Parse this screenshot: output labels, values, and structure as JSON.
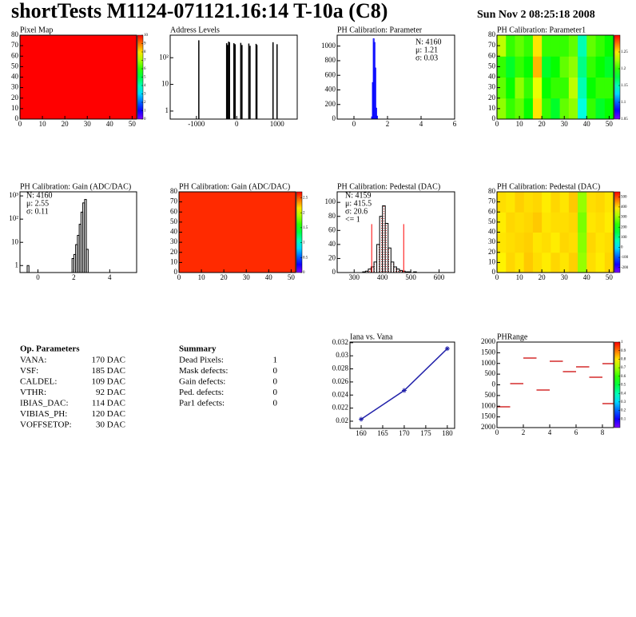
{
  "header": {
    "title": "shortTests M1124-071121.16:14 T-10a (C8)",
    "date": "Sun Nov  2 08:25:18 2008"
  },
  "chart_data": [
    {
      "type": "heatmap",
      "title": "Pixel Map",
      "xlim": [
        0,
        52
      ],
      "xticks": [
        0,
        10,
        20,
        30,
        40,
        50
      ],
      "ylim": [
        0,
        80
      ],
      "yticks": [
        0,
        10,
        20,
        30,
        40,
        50,
        60,
        70,
        80
      ],
      "z": [
        [
          10
        ]
      ],
      "zlim": [
        0,
        10
      ],
      "zticks": [
        0,
        1,
        2,
        3,
        4,
        5,
        6,
        7,
        8,
        9,
        10
      ]
    },
    {
      "type": "spikes",
      "title": "Address Levels",
      "log_y": true,
      "xlim": [
        -1650,
        1500
      ],
      "xticks": [
        -1000,
        0,
        1000
      ],
      "ylim": [
        0.5,
        700
      ],
      "yticks": [
        1,
        10,
        {
          "value": 100,
          "label": "10²"
        }
      ],
      "color": "#000000",
      "x": [
        -940,
        -250,
        -230,
        -200,
        -180,
        -70,
        -40,
        100,
        130,
        300,
        330,
        480,
        500,
        900,
        1000
      ],
      "values": [
        450,
        350,
        300,
        400,
        380,
        350,
        320,
        360,
        300,
        340,
        280,
        330,
        300,
        380,
        320
      ]
    },
    {
      "type": "histogram",
      "title": "PH Calibration: Parameter",
      "xlim": [
        -1,
        6
      ],
      "xticks": [
        0,
        2,
        4,
        6
      ],
      "ylim": [
        0,
        1150
      ],
      "yticks": [
        0,
        200,
        400,
        600,
        800,
        1000
      ],
      "color": "#0000ff",
      "bins": [
        1.05,
        1.1,
        1.15,
        1.2,
        1.25,
        1.3,
        1.35,
        1.4
      ],
      "values": [
        30,
        500,
        1100,
        1050,
        700,
        150,
        40
      ],
      "stats": [
        {
          "text": "N: 4160",
          "color": "#0000ff"
        },
        {
          "text": "μ: 1.21",
          "color": "#0000ff"
        },
        {
          "text": "σ: 0.03",
          "color": "#0000ff"
        }
      ]
    },
    {
      "type": "heatmap",
      "title": "PH Calibration: Parameter1",
      "xlim": [
        0,
        52
      ],
      "xticks": [
        0,
        10,
        20,
        30,
        40,
        50
      ],
      "ylim": [
        0,
        80
      ],
      "yticks": [
        0,
        10,
        20,
        30,
        40,
        50,
        60,
        70,
        80
      ],
      "z": [
        [
          1.22,
          1.2,
          1.21,
          1.19,
          1.25,
          1.2,
          1.18,
          1.21,
          1.22,
          1.14,
          1.2,
          1.18,
          1.19
        ],
        [
          1.21,
          1.19,
          1.22,
          1.2,
          1.24,
          1.19,
          1.2,
          1.2,
          1.23,
          1.15,
          1.19,
          1.2,
          1.2
        ],
        [
          1.2,
          1.18,
          1.2,
          1.19,
          1.26,
          1.18,
          1.19,
          1.21,
          1.22,
          1.16,
          1.2,
          1.19,
          1.18
        ],
        [
          1.23,
          1.2,
          1.21,
          1.2,
          1.25,
          1.2,
          1.2,
          1.2,
          1.21,
          1.15,
          1.21,
          1.2,
          1.19
        ]
      ],
      "zlim": [
        1.05,
        1.3
      ],
      "zticks": [
        1.05,
        1.1,
        1.15,
        1.2,
        1.25
      ]
    },
    {
      "type": "histogram",
      "title": "PH Calibration: Gain (ADC/DAC)",
      "log_y": true,
      "xlim": [
        -1,
        5.5
      ],
      "xticks": [
        0,
        2,
        4
      ],
      "ylim": [
        0.5,
        1500
      ],
      "yticks": [
        1,
        10,
        {
          "value": 100,
          "label": "10²"
        },
        {
          "value": 1000,
          "label": "10³"
        }
      ],
      "color": "#000000",
      "bins": [
        -0.6,
        -0.5,
        1.9,
        2.0,
        2.1,
        2.2,
        2.3,
        2.4,
        2.5,
        2.6,
        2.7,
        2.8
      ],
      "values": [
        1,
        0,
        2,
        3,
        8,
        20,
        60,
        200,
        500,
        700,
        5
      ],
      "stats": [
        {
          "text": "N: 4160",
          "color": "#000000"
        },
        {
          "text": "μ: 2.55",
          "color": "#000000"
        },
        {
          "text": "σ: 0.11",
          "color": "#000000"
        }
      ]
    },
    {
      "type": "heatmap",
      "title": "PH Calibration: Gain (ADC/DAC)",
      "xlim": [
        0,
        52
      ],
      "xticks": [
        0,
        10,
        20,
        30,
        40,
        50
      ],
      "ylim": [
        0,
        80
      ],
      "yticks": [
        0,
        10,
        20,
        30,
        40,
        50,
        60,
        70,
        80
      ],
      "z": [
        [
          2.6
        ]
      ],
      "zlim": [
        0,
        2.7
      ],
      "zticks": [
        0,
        0.5,
        1,
        1.5,
        2,
        2.5
      ]
    },
    {
      "type": "histogram",
      "title": "PH Calibration: Pedestal (DAC)",
      "xlim": [
        240,
        655
      ],
      "xticks": [
        300,
        400,
        500,
        600
      ],
      "ylim": [
        0,
        115
      ],
      "yticks": [
        0,
        20,
        40,
        60,
        80,
        100
      ],
      "color": "#000000",
      "hatch": true,
      "bins": [
        330,
        340,
        350,
        360,
        370,
        380,
        390,
        400,
        410,
        420,
        430,
        440,
        450,
        460,
        470,
        480,
        490,
        500,
        510,
        520
      ],
      "values": [
        1,
        2,
        5,
        8,
        15,
        40,
        80,
        95,
        70,
        35,
        15,
        8,
        5,
        3,
        2,
        1,
        1,
        0,
        1
      ],
      "cuts": [
        362,
        475
      ],
      "cut_color": "#ff0000",
      "stats": [
        {
          "text": "N: 4159",
          "color": "#000000"
        },
        {
          "text": "μ: 415.5",
          "color": "#ff0000"
        },
        {
          "text": "σ: 20.6",
          "color": "#ff0000"
        },
        {
          "text": "<= 1",
          "color": "#ff0000"
        }
      ]
    },
    {
      "type": "heatmap",
      "title": "PH Calibration: Pedestal (DAC)",
      "xlim": [
        0,
        52
      ],
      "xticks": [
        0,
        10,
        20,
        30,
        40,
        50
      ],
      "ylim": [
        0,
        80
      ],
      "yticks": [
        0,
        10,
        20,
        30,
        40,
        50,
        60,
        70,
        80
      ],
      "z": [
        [
          380,
          400,
          390,
          410,
          395,
          385,
          400,
          390,
          405,
          300,
          395,
          385,
          400
        ],
        [
          390,
          395,
          400,
          405,
          390,
          395,
          385,
          400,
          395,
          290,
          400,
          390,
          395
        ],
        [
          385,
          400,
          395,
          400,
          410,
          390,
          395,
          395,
          400,
          280,
          390,
          395,
          385
        ],
        [
          395,
          390,
          405,
          395,
          400,
          385,
          400,
          390,
          410,
          300,
          395,
          400,
          390
        ]
      ],
      "zlim": [
        -250,
        550
      ],
      "zticks": [
        -200,
        -100,
        0,
        100,
        200,
        300,
        400,
        500
      ]
    },
    {
      "type": "line",
      "title": "Iana vs. Vana",
      "xlim": [
        157.4,
        181.7
      ],
      "xticks": [
        160,
        165,
        170,
        175,
        180
      ],
      "ylim": [
        0.0189,
        0.0321
      ],
      "yticks": [
        0.02,
        0.022,
        0.024,
        0.026,
        0.028,
        0.03,
        0.032
      ],
      "color": "#2222aa",
      "x": [
        160,
        170,
        180
      ],
      "values": [
        0.0203,
        0.0247,
        0.0311
      ]
    },
    {
      "type": "dash",
      "title": "PHRange",
      "xlim": [
        0,
        8.85
      ],
      "xticks": [
        0,
        2,
        4,
        6,
        8
      ],
      "ylim": [
        -2000,
        2000
      ],
      "yticks": [
        {
          "value": -2000,
          "label": "2000"
        },
        {
          "value": -1500,
          "label": "1500"
        },
        {
          "value": -1000,
          "label": "1000"
        },
        {
          "value": -500,
          "label": "500"
        },
        0,
        500,
        1000,
        1500,
        2000
      ],
      "color": "#cc0000",
      "x": [
        0,
        1,
        2,
        3,
        4,
        5,
        6,
        7,
        8,
        8
      ],
      "values": [
        -1028,
        56,
        1253,
        -243,
        1103,
        617,
        841,
        355,
        991,
        -879
      ],
      "zlim": [
        0,
        1
      ],
      "zticks": [
        0.1,
        0.2,
        0.3,
        0.4,
        0.5,
        0.6,
        0.7,
        0.8,
        0.9,
        1
      ]
    }
  ],
  "op_parameters": {
    "title": "Op. Parameters",
    "rows": [
      [
        "VANA:",
        "170 DAC"
      ],
      [
        "VSF:",
        "185 DAC"
      ],
      [
        "CALDEL:",
        "109 DAC"
      ],
      [
        "VTHR:",
        "92 DAC"
      ],
      [
        "IBIAS_DAC:",
        "114 DAC"
      ],
      [
        "VIBIAS_PH:",
        "120 DAC"
      ],
      [
        "VOFFSETOP:",
        "30 DAC"
      ]
    ]
  },
  "summary": {
    "title": "Summary",
    "rows": [
      {
        "label": "Dead Pixels:",
        "value": 1,
        "color": "#000000"
      },
      {
        "label": "Mask defects:",
        "value": 0,
        "color": "#000000"
      },
      {
        "label": "Gain defects:",
        "value": 0,
        "color": "#000000"
      },
      {
        "label": "Ped. defects:",
        "value": 0,
        "color": "#ff0000"
      },
      {
        "label": "Par1 defects:",
        "value": 0,
        "color": "#0000ff"
      }
    ]
  }
}
